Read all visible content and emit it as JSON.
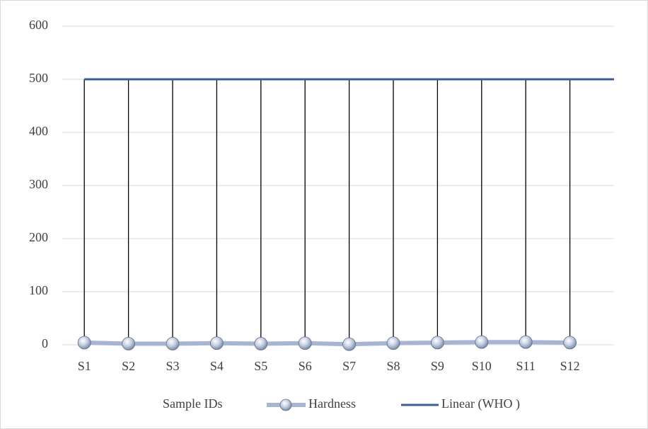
{
  "chart_data": {
    "type": "line",
    "x_label": "Sample IDs",
    "categories": [
      "S1",
      "S2",
      "S3",
      "S4",
      "S5",
      "S6",
      "S7",
      "S8",
      "S9",
      "S10",
      "S11",
      "S12"
    ],
    "series": [
      {
        "name": "Hardness",
        "color": "#a7b5d3",
        "values": [
          4,
          2,
          2,
          3,
          2,
          3,
          1,
          3,
          4,
          5,
          5,
          4
        ]
      },
      {
        "name": "Linear (WHO )",
        "color": "#3b5f94",
        "values": [
          500,
          500,
          500,
          500,
          500,
          500,
          500,
          500,
          500,
          500,
          500,
          500
        ]
      }
    ],
    "ylim": [
      0,
      600
    ],
    "yticks": [
      0,
      100,
      200,
      300,
      400,
      500,
      600
    ],
    "grid": true,
    "drop_lines": true
  }
}
